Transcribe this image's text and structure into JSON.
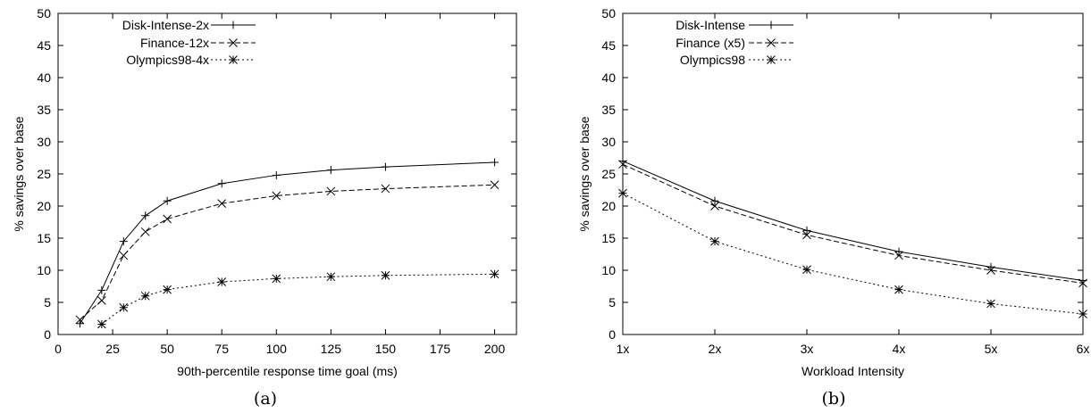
{
  "chart_data": [
    {
      "type": "line",
      "caption": "(a)",
      "xlabel": "90th-percentile response time goal (ms)",
      "ylabel": "% savings over base",
      "xlim": [
        0,
        210
      ],
      "ylim": [
        0,
        50
      ],
      "xticks": [
        "0",
        "25",
        "50",
        "75",
        "100",
        "125",
        "150",
        "175",
        "200"
      ],
      "yticks": [
        "0",
        "5",
        "10",
        "15",
        "20",
        "25",
        "30",
        "35",
        "40",
        "45",
        "50"
      ],
      "grid": false,
      "legend_position": "top-left",
      "series": [
        {
          "name": "Disk-Intense-2x",
          "marker": "plus",
          "dash": "solid",
          "x": [
            10,
            20,
            30,
            40,
            50,
            75,
            100,
            125,
            150,
            200
          ],
          "y": [
            1.7,
            6.9,
            14.5,
            18.5,
            20.8,
            23.5,
            24.8,
            25.6,
            26.1,
            26.8
          ]
        },
        {
          "name": "Finance-12x",
          "marker": "cross",
          "dash": "dashed",
          "x": [
            10,
            20,
            30,
            40,
            50,
            75,
            100,
            125,
            150,
            200
          ],
          "y": [
            2.3,
            5.3,
            12.3,
            16.0,
            18.0,
            20.4,
            21.6,
            22.3,
            22.7,
            23.3
          ]
        },
        {
          "name": "Olympics98-4x",
          "marker": "star",
          "dash": "dotted",
          "x": [
            20,
            30,
            40,
            50,
            75,
            100,
            125,
            150,
            200
          ],
          "y": [
            1.6,
            4.2,
            6.0,
            7.0,
            8.2,
            8.7,
            9.0,
            9.2,
            9.4
          ]
        }
      ]
    },
    {
      "type": "line",
      "caption": "(b)",
      "xlabel": "Workload Intensity",
      "ylabel": "% savings over base",
      "xlim": [
        1,
        6
      ],
      "ylim": [
        0,
        50
      ],
      "categories": [
        "1x",
        "2x",
        "3x",
        "4x",
        "5x",
        "6x"
      ],
      "yticks": [
        "0",
        "5",
        "10",
        "15",
        "20",
        "25",
        "30",
        "35",
        "40",
        "45",
        "50"
      ],
      "grid": false,
      "legend_position": "top-left",
      "series": [
        {
          "name": "Disk-Intense",
          "marker": "plus",
          "dash": "solid",
          "x": [
            1,
            2,
            3,
            4,
            5,
            6
          ],
          "y": [
            27.0,
            20.8,
            16.2,
            12.9,
            10.5,
            8.4
          ]
        },
        {
          "name": "Finance (x5)",
          "marker": "cross",
          "dash": "dashed",
          "x": [
            1,
            2,
            3,
            4,
            5,
            6
          ],
          "y": [
            26.5,
            20.0,
            15.5,
            12.3,
            10.0,
            8.0
          ]
        },
        {
          "name": "Olympics98",
          "marker": "star",
          "dash": "dotted",
          "x": [
            1,
            2,
            3,
            4,
            5,
            6
          ],
          "y": [
            22.0,
            14.5,
            10.1,
            7.0,
            4.8,
            3.2
          ]
        }
      ]
    }
  ]
}
